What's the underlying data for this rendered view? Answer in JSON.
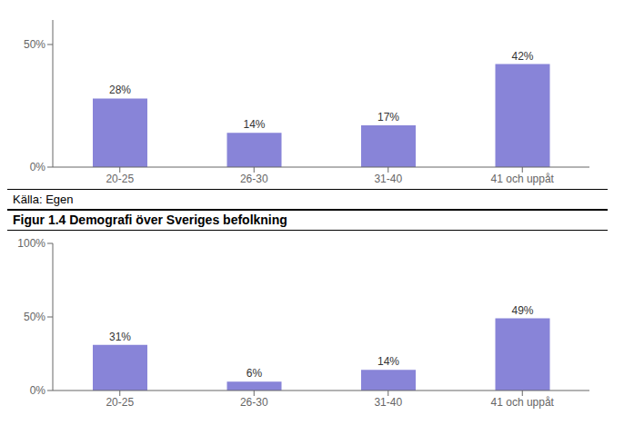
{
  "chart_data": [
    {
      "type": "bar",
      "categories": [
        "20-25",
        "26-30",
        "31-40",
        "41 och uppåt"
      ],
      "values": [
        28,
        14,
        17,
        42
      ],
      "value_labels": [
        "28%",
        "14%",
        "17%",
        "42%"
      ],
      "data_labels": true,
      "color": "#8884d8",
      "ylim": [
        0,
        60
      ],
      "yticks": [
        {
          "value": 0,
          "label": "0%"
        },
        {
          "value": 50,
          "label": "50%"
        }
      ],
      "grid": false,
      "annotations": [
        "Källa: Egen"
      ]
    },
    {
      "type": "bar",
      "title": "Figur 1.4 Demografi över Sveriges befolkning",
      "categories": [
        "20-25",
        "26-30",
        "31-40",
        "41 och uppåt"
      ],
      "values": [
        31,
        6,
        14,
        49
      ],
      "value_labels": [
        "31%",
        "6%",
        "14%",
        "49%"
      ],
      "data_labels": true,
      "color": "#8884d8",
      "ylim": [
        0,
        100
      ],
      "yticks": [
        {
          "value": 0,
          "label": "0%"
        },
        {
          "value": 50,
          "label": "50%"
        },
        {
          "value": 100,
          "label": "100%"
        }
      ],
      "grid": false
    }
  ]
}
